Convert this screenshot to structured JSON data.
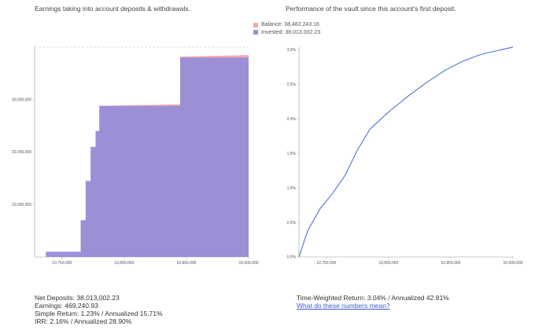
{
  "captions": {
    "left": "Earnings taking into account deposits & withdrawals.",
    "right": "Performance of the vault since this account's first deposit."
  },
  "legend": [
    {
      "label": "Balance: 38,482,243.16",
      "color": "#f4a8ac"
    },
    {
      "label": "Invested: 38,013,002.23",
      "color": "#9d8fd6"
    }
  ],
  "stats": {
    "net_deposits": "Net Deposits: 38,013,002.23",
    "earnings": "Earnings: 469,240.93",
    "simple_return": "Simple Return: 1.23% / Annualized 15.71%",
    "irr": "IRR: 2.16% / Annualized 28.90%",
    "time_weighted": "Time-Weighted Return: 3.04% / Annualized 42.81%",
    "help_link": "What do these numbers mean?"
  },
  "colors": {
    "invested": "#9d8fd6",
    "balance": "#f4a8ac",
    "line": "#5b7fd6"
  },
  "chart_data": [
    {
      "type": "area",
      "x_ticks": [
        10750000,
        10800000,
        10850000,
        10900000
      ],
      "x_tick_labels": [
        "10,750,000",
        "10,800,000",
        "10,850,000",
        "10,900,000"
      ],
      "y_ticks": [
        10000000,
        20000000,
        30000000
      ],
      "y_tick_labels": [
        "10,000,000",
        "20,000,000",
        "30,000,000"
      ],
      "xlim": [
        10728000,
        10900000
      ],
      "ylim": [
        0,
        40000000
      ],
      "series": [
        {
          "name": "Invested",
          "color": "#9d8fd6",
          "points": [
            [
              10728000,
              0
            ],
            [
              10737000,
              0
            ],
            [
              10737000,
              1000000
            ],
            [
              10765000,
              1000000
            ],
            [
              10765000,
              7000000
            ],
            [
              10769000,
              7000000
            ],
            [
              10769000,
              14500000
            ],
            [
              10773000,
              14500000
            ],
            [
              10773000,
              21000000
            ],
            [
              10777000,
              21000000
            ],
            [
              10777000,
              24000000
            ],
            [
              10780000,
              24000000
            ],
            [
              10780000,
              28800000
            ],
            [
              10845000,
              28800000
            ],
            [
              10845000,
              38013002
            ],
            [
              10900000,
              38013002
            ]
          ]
        },
        {
          "name": "Balance",
          "color": "#f4a8ac",
          "points": [
            [
              10780000,
              28800000
            ],
            [
              10845000,
              29100000
            ],
            [
              10845000,
              38200000
            ],
            [
              10900000,
              38482243
            ]
          ]
        }
      ]
    },
    {
      "type": "line",
      "x_ticks": [
        10750000,
        10800000,
        10850000,
        10900000
      ],
      "x_tick_labels": [
        "10,750,000",
        "10,800,000",
        "10,850,000",
        "10,900,000"
      ],
      "y_ticks": [
        0,
        0.5,
        1.0,
        1.5,
        2.0,
        2.5,
        3.0
      ],
      "y_tick_labels": [
        "0.0%",
        "0.5%",
        "1.0%",
        "1.5%",
        "2.0%",
        "2.5%",
        "3.0%"
      ],
      "xlim": [
        10728000,
        10900000
      ],
      "ylim": [
        0,
        3.04
      ],
      "series": [
        {
          "x": [
            10728000,
            10735000,
            10745000,
            10755000,
            10765000,
            10775000,
            10785000,
            10800000,
            10815000,
            10830000,
            10845000,
            10860000,
            10875000,
            10890000,
            10900000
          ],
          "values": [
            0,
            0.38,
            0.7,
            0.92,
            1.18,
            1.55,
            1.85,
            2.1,
            2.32,
            2.52,
            2.7,
            2.84,
            2.94,
            3.0,
            3.04
          ]
        }
      ]
    }
  ]
}
